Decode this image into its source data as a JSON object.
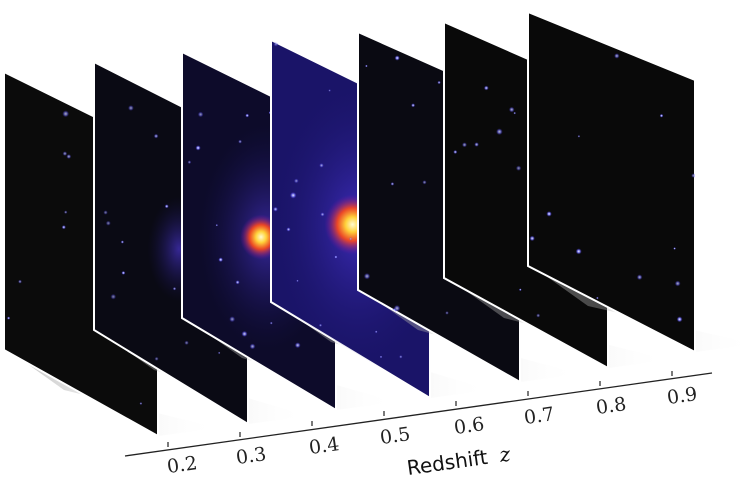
{
  "slices": [
    {
      "z": "0.2",
      "brightness": 0.15,
      "color": "#0b0b0b"
    },
    {
      "z": "0.3",
      "brightness": 0.35,
      "color": "#0a0a14"
    },
    {
      "z": "0.4",
      "brightness": 0.75,
      "color": "#0d0b2a"
    },
    {
      "z": "0.5",
      "brightness": 1.0,
      "color": "#1a1468"
    },
    {
      "z": "0.6",
      "brightness": 0.3,
      "color": "#0a0a12"
    },
    {
      "z": "0.7",
      "brightness": 0.2,
      "color": "#090909"
    },
    {
      "z": "0.8",
      "brightness": 0.15,
      "color": "#090909"
    },
    {
      "z": "0.9",
      "brightness": 0.15,
      "color": "#090909"
    }
  ],
  "axis": {
    "label_text": "Redshift",
    "label_var": "z"
  },
  "colors": {
    "hot": "#ffe066",
    "warm": "#ff4a1a",
    "cool": "#3a2ad8",
    "axis": "#222222"
  }
}
